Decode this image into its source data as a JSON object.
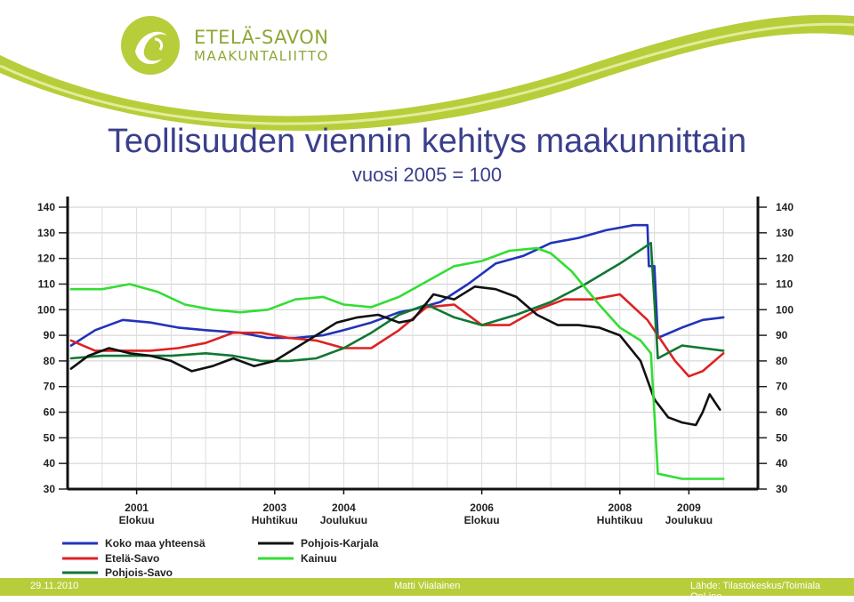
{
  "header": {
    "logo_line1": "ETELÄ-SAVON",
    "logo_line2": "MAAKUNTALIITTO",
    "title": "Teollisuuden viennin kehitys maakunnittain",
    "subtitle": "vuosi 2005 = 100"
  },
  "footer": {
    "date": "29.11.2010",
    "author": "Matti Viialainen",
    "source": "Lähde: Tilastokeskus/Toimiala OnLine"
  },
  "colors": {
    "brand_green": "#b8cd3a",
    "title_blue": "#3a3f8c"
  },
  "chart_data": {
    "type": "line",
    "title": "Teollisuuden viennin kehitys maakunnittain",
    "subtitle": "vuosi 2005 = 100",
    "xlabel": "",
    "ylabel": "",
    "xlim": [
      2000.0,
      2010.0
    ],
    "ylim": [
      30,
      140
    ],
    "yticks": [
      30,
      40,
      50,
      60,
      70,
      80,
      90,
      100,
      110,
      120,
      130,
      140
    ],
    "xticks": [
      {
        "x": 2001.0,
        "year": "2001",
        "month": "Elokuu"
      },
      {
        "x": 2003.0,
        "year": "2003",
        "month": "Huhtikuu"
      },
      {
        "x": 2004.0,
        "year": "2004",
        "month": "Joulukuu"
      },
      {
        "x": 2006.0,
        "year": "2006",
        "month": "Elokuu"
      },
      {
        "x": 2008.0,
        "year": "2008",
        "month": "Huhtikuu"
      },
      {
        "x": 2009.0,
        "year": "2009",
        "month": "Joulukuu"
      }
    ],
    "grid": true,
    "legend_position": "bottom-left",
    "series": [
      {
        "name": "Koko maa yhteensä",
        "color": "#2233bb",
        "x": [
          2000.05,
          2000.4,
          2000.8,
          2001.2,
          2001.6,
          2002.0,
          2002.5,
          2002.9,
          2003.3,
          2003.7,
          2004.0,
          2004.4,
          2004.8,
          2005.0,
          2005.4,
          2005.8,
          2006.2,
          2006.6,
          2007.0,
          2007.4,
          2007.8,
          2008.2,
          2008.4,
          2008.42,
          2008.5,
          2008.55,
          2008.9,
          2009.2,
          2009.5
        ],
        "y": [
          86,
          92,
          96,
          95,
          93,
          92,
          91,
          89,
          89,
          90,
          92,
          95,
          99,
          100,
          103,
          110,
          118,
          121,
          126,
          128,
          131,
          133,
          133,
          117,
          117,
          89,
          93,
          96,
          97
        ]
      },
      {
        "name": "Etelä-Savo",
        "color": "#dd2222",
        "x": [
          2000.05,
          2000.4,
          2000.8,
          2001.2,
          2001.6,
          2002.0,
          2002.4,
          2002.8,
          2003.2,
          2003.6,
          2004.0,
          2004.4,
          2004.8,
          2005.2,
          2005.6,
          2006.0,
          2006.4,
          2006.8,
          2007.2,
          2007.6,
          2008.0,
          2008.4,
          2008.8,
          2009.0,
          2009.2,
          2009.5
        ],
        "y": [
          88,
          84,
          84,
          84,
          85,
          87,
          91,
          91,
          89,
          88,
          85,
          85,
          92,
          101,
          102,
          94,
          94,
          100,
          104,
          104,
          106,
          96,
          80,
          74,
          76,
          83
        ]
      },
      {
        "name": "Pohjois-Savo",
        "color": "#117733",
        "x": [
          2000.05,
          2000.5,
          2001.0,
          2001.5,
          2002.0,
          2002.4,
          2002.8,
          2003.2,
          2003.6,
          2004.0,
          2004.4,
          2004.8,
          2005.2,
          2005.6,
          2006.0,
          2006.5,
          2007.0,
          2007.5,
          2008.0,
          2008.45,
          2008.55,
          2008.9,
          2009.2,
          2009.5
        ],
        "y": [
          81,
          82,
          82,
          82,
          83,
          82,
          80,
          80,
          81,
          85,
          91,
          98,
          102,
          97,
          94,
          98,
          103,
          110,
          118,
          126,
          81,
          86,
          85,
          84
        ]
      },
      {
        "name": "Pohjois-Karjala",
        "color": "#111111",
        "x": [
          2000.05,
          2000.3,
          2000.6,
          2000.9,
          2001.2,
          2001.5,
          2001.8,
          2002.1,
          2002.4,
          2002.7,
          2003.0,
          2003.3,
          2003.6,
          2003.9,
          2004.2,
          2004.5,
          2004.8,
          2005.0,
          2005.3,
          2005.6,
          2005.9,
          2006.2,
          2006.5,
          2006.8,
          2007.1,
          2007.4,
          2007.7,
          2008.0,
          2008.3,
          2008.5,
          2008.7,
          2008.9,
          2009.1,
          2009.2,
          2009.3,
          2009.45
        ],
        "y": [
          77,
          82,
          85,
          83,
          82,
          80,
          76,
          78,
          81,
          78,
          80,
          85,
          90,
          95,
          97,
          98,
          95,
          96,
          106,
          104,
          109,
          108,
          105,
          98,
          94,
          94,
          93,
          90,
          80,
          65,
          58,
          56,
          55,
          60,
          67,
          61
        ]
      },
      {
        "name": "Kainuu",
        "color": "#33dd33",
        "x": [
          2000.05,
          2000.5,
          2000.9,
          2001.3,
          2001.7,
          2002.1,
          2002.5,
          2002.9,
          2003.3,
          2003.7,
          2004.0,
          2004.4,
          2004.8,
          2005.2,
          2005.6,
          2006.0,
          2006.4,
          2006.8,
          2007.0,
          2007.3,
          2007.7,
          2008.0,
          2008.3,
          2008.45,
          2008.55,
          2008.9,
          2009.2,
          2009.5
        ],
        "y": [
          108,
          108,
          110,
          107,
          102,
          100,
          99,
          100,
          104,
          105,
          102,
          101,
          105,
          111,
          117,
          119,
          123,
          124,
          122,
          115,
          102,
          93,
          88,
          83,
          36,
          34,
          34,
          34
        ]
      }
    ]
  }
}
